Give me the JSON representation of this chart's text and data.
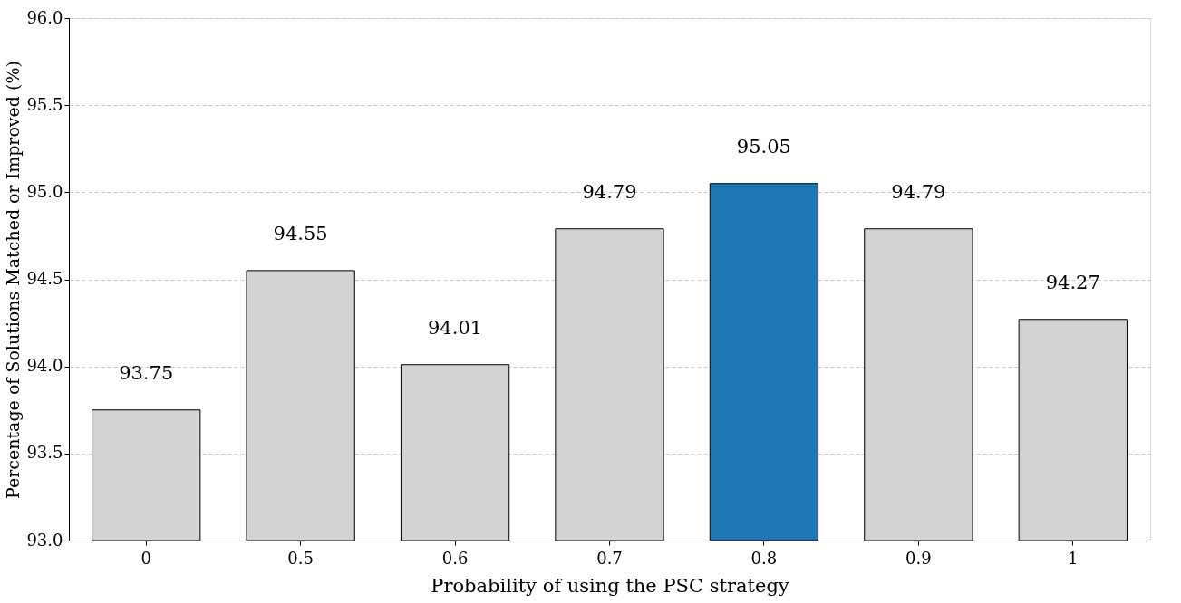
{
  "chart_data": {
    "type": "bar",
    "xlabel": "Probability of using the PSC strategy",
    "ylabel": "Percentage of Solutions Matched or Improved (%)",
    "categories": [
      "0",
      "0.5",
      "0.6",
      "0.7",
      "0.8",
      "0.9",
      "1"
    ],
    "values": [
      93.75,
      94.55,
      94.01,
      94.79,
      95.05,
      94.79,
      94.27
    ],
    "colors": [
      "#d3d3d3",
      "#d3d3d3",
      "#d3d3d3",
      "#d3d3d3",
      "#1f77b4",
      "#d3d3d3",
      "#d3d3d3"
    ],
    "ylim": [
      93.0,
      96.0
    ],
    "yticks": [
      {
        "value": 93.0,
        "label": "93.0"
      },
      {
        "value": 93.5,
        "label": "93.5"
      },
      {
        "value": 94.0,
        "label": "94.0"
      },
      {
        "value": 94.5,
        "label": "94.5"
      },
      {
        "value": 95.0,
        "label": "95.0"
      },
      {
        "value": 95.5,
        "label": "95.5"
      },
      {
        "value": 96.0,
        "label": "96.0"
      }
    ],
    "grid": "y",
    "data_labels": true
  }
}
